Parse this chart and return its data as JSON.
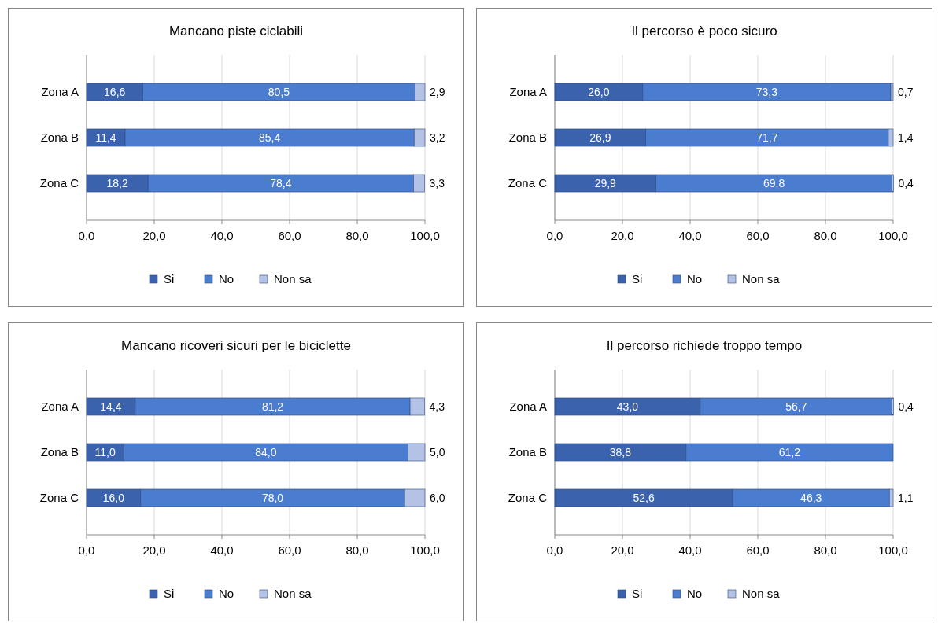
{
  "chart_data": [
    {
      "type": "bar",
      "orientation": "horizontal",
      "stacked": true,
      "title": "Mancano piste ciclabili",
      "categories": [
        "Zona A",
        "Zona B",
        "Zona C"
      ],
      "xlim": [
        0,
        100
      ],
      "xticks": [
        {
          "value": 0,
          "label": "0,0"
        },
        {
          "value": 20,
          "label": "20,0"
        },
        {
          "value": 40,
          "label": "40,0"
        },
        {
          "value": 60,
          "label": "60,0"
        },
        {
          "value": 80,
          "label": "80,0"
        },
        {
          "value": 100,
          "label": "100,0"
        }
      ],
      "grid": "x",
      "legend": "bottom",
      "series": [
        {
          "name": "Si",
          "color": "#3a62ad",
          "values": [
            16.6,
            11.4,
            18.2
          ],
          "value_labels": [
            "16,6",
            "11,4",
            "18,2"
          ]
        },
        {
          "name": "No",
          "color": "#4a7ccf",
          "values": [
            80.5,
            85.4,
            78.4
          ],
          "value_labels": [
            "80,5",
            "85,4",
            "78,4"
          ]
        },
        {
          "name": "Non sa",
          "color": "#b3c2e5",
          "values": [
            2.9,
            3.2,
            3.3
          ],
          "value_labels": [
            "2,9",
            "3,2",
            "3,3"
          ]
        }
      ]
    },
    {
      "type": "bar",
      "orientation": "horizontal",
      "stacked": true,
      "title": "Il percorso è poco sicuro",
      "categories": [
        "Zona A",
        "Zona B",
        "Zona C"
      ],
      "xlim": [
        0,
        100
      ],
      "xticks": [
        {
          "value": 0,
          "label": "0,0"
        },
        {
          "value": 20,
          "label": "20,0"
        },
        {
          "value": 40,
          "label": "40,0"
        },
        {
          "value": 60,
          "label": "60,0"
        },
        {
          "value": 80,
          "label": "80,0"
        },
        {
          "value": 100,
          "label": "100,0"
        }
      ],
      "grid": "x",
      "legend": "bottom",
      "series": [
        {
          "name": "Si",
          "color": "#3a62ad",
          "values": [
            26.0,
            26.9,
            29.9
          ],
          "value_labels": [
            "26,0",
            "26,9",
            "29,9"
          ]
        },
        {
          "name": "No",
          "color": "#4a7ccf",
          "values": [
            73.3,
            71.7,
            69.8
          ],
          "value_labels": [
            "73,3",
            "71,7",
            "69,8"
          ]
        },
        {
          "name": "Non sa",
          "color": "#b3c2e5",
          "values": [
            0.7,
            1.4,
            0.4
          ],
          "value_labels": [
            "0,7",
            "1,4",
            "0,4"
          ]
        }
      ]
    },
    {
      "type": "bar",
      "orientation": "horizontal",
      "stacked": true,
      "title": "Mancano ricoveri sicuri per le biciclette",
      "categories": [
        "Zona A",
        "Zona B",
        "Zona C"
      ],
      "xlim": [
        0,
        100
      ],
      "xticks": [
        {
          "value": 0,
          "label": "0,0"
        },
        {
          "value": 20,
          "label": "20,0"
        },
        {
          "value": 40,
          "label": "40,0"
        },
        {
          "value": 60,
          "label": "60,0"
        },
        {
          "value": 80,
          "label": "80,0"
        },
        {
          "value": 100,
          "label": "100,0"
        }
      ],
      "grid": "x",
      "legend": "bottom",
      "series": [
        {
          "name": "Si",
          "color": "#3a62ad",
          "values": [
            14.4,
            11.0,
            16.0
          ],
          "value_labels": [
            "14,4",
            "11,0",
            "16,0"
          ]
        },
        {
          "name": "No",
          "color": "#4a7ccf",
          "values": [
            81.2,
            84.0,
            78.0
          ],
          "value_labels": [
            "81,2",
            "84,0",
            "78,0"
          ]
        },
        {
          "name": "Non sa",
          "color": "#b3c2e5",
          "values": [
            4.3,
            5.0,
            6.0
          ],
          "value_labels": [
            "4,3",
            "5,0",
            "6,0"
          ]
        }
      ]
    },
    {
      "type": "bar",
      "orientation": "horizontal",
      "stacked": true,
      "title": "Il percorso richiede troppo tempo",
      "categories": [
        "Zona A",
        "Zona B",
        "Zona C"
      ],
      "xlim": [
        0,
        100
      ],
      "xticks": [
        {
          "value": 0,
          "label": "0,0"
        },
        {
          "value": 20,
          "label": "20,0"
        },
        {
          "value": 40,
          "label": "40,0"
        },
        {
          "value": 60,
          "label": "60,0"
        },
        {
          "value": 80,
          "label": "80,0"
        },
        {
          "value": 100,
          "label": "100,0"
        }
      ],
      "grid": "x",
      "legend": "bottom",
      "series": [
        {
          "name": "Si",
          "color": "#3a62ad",
          "values": [
            43.0,
            38.8,
            52.6
          ],
          "value_labels": [
            "43,0",
            "38,8",
            "52,6"
          ]
        },
        {
          "name": "No",
          "color": "#4a7ccf",
          "values": [
            56.7,
            61.2,
            46.3
          ],
          "value_labels": [
            "56,7",
            "61,2",
            "46,3"
          ]
        },
        {
          "name": "Non sa",
          "color": "#b3c2e5",
          "values": [
            0.4,
            0,
            1.1
          ],
          "value_labels": [
            "0,4",
            null,
            "1,1"
          ]
        }
      ]
    }
  ]
}
